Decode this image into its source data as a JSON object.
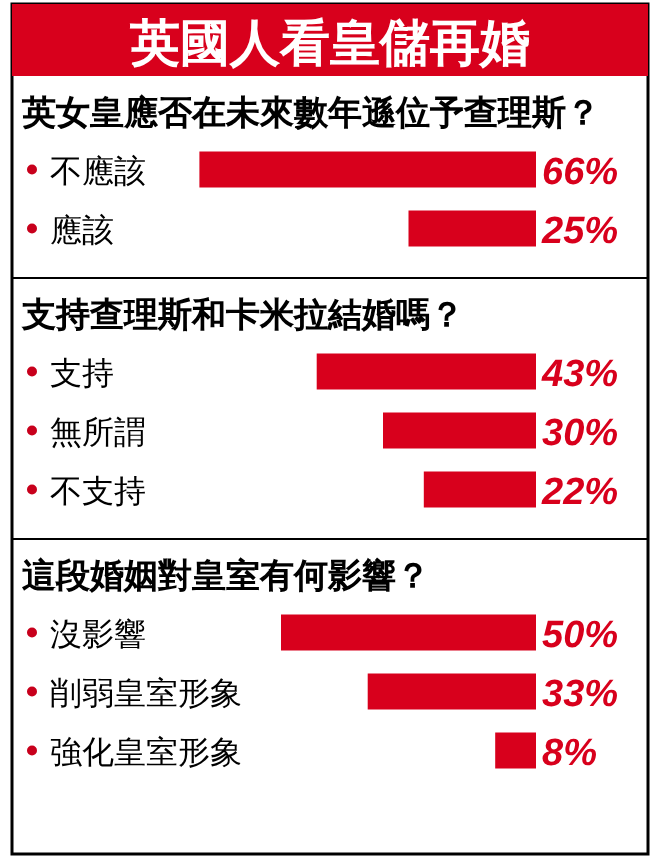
{
  "chart_data": [
    {
      "type": "bar",
      "orientation": "horizontal",
      "title": "英國人看皇儲再婚",
      "subtitle": "英女皇應否在未來數年遜位予查理斯？",
      "categories": [
        "不應該",
        "應該"
      ],
      "values": [
        66,
        25
      ],
      "value_labels": [
        "66%",
        "25%"
      ],
      "color": "#d8001c"
    },
    {
      "type": "bar",
      "orientation": "horizontal",
      "subtitle": "支持查理斯和卡米拉結婚嗎？",
      "categories": [
        "支持",
        "無所謂",
        "不支持"
      ],
      "values": [
        43,
        30,
        22
      ],
      "value_labels": [
        "43%",
        "30%",
        "22%"
      ],
      "color": "#d8001c"
    },
    {
      "type": "bar",
      "orientation": "horizontal",
      "subtitle": "這段婚姻對皇室有何影響？",
      "categories": [
        "沒影響",
        "削弱皇室形象",
        "強化皇室形象"
      ],
      "values": [
        50,
        33,
        8
      ],
      "value_labels": [
        "50%",
        "33%",
        "8%"
      ],
      "color": "#d8001c"
    }
  ]
}
